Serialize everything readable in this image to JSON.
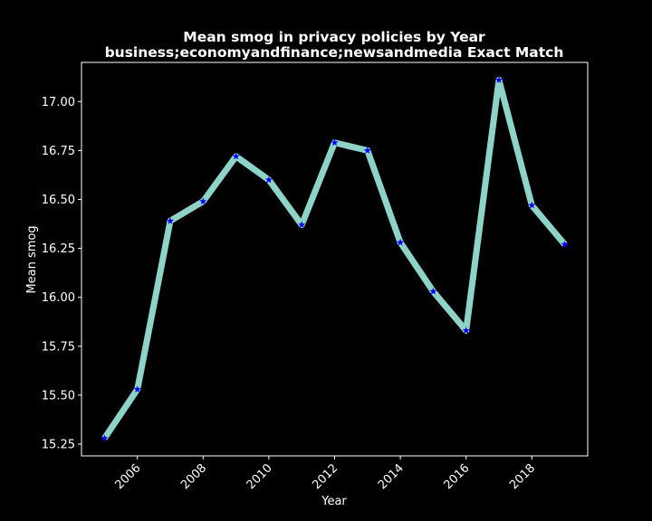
{
  "chart_data": {
    "type": "line",
    "title": "Mean smog in privacy policies by Year",
    "subtitle": "business;economyandfinance;newsandmedia Exact Match",
    "xlabel": "Year",
    "ylabel": "Mean smog",
    "x": [
      2005,
      2006,
      2007,
      2008,
      2009,
      2010,
      2011,
      2012,
      2013,
      2014,
      2015,
      2016,
      2017,
      2018,
      2019
    ],
    "series": [
      {
        "values": [
          15.28,
          15.53,
          16.39,
          16.49,
          16.72,
          16.6,
          16.37,
          16.79,
          16.75,
          16.28,
          16.03,
          15.83,
          17.11,
          16.47,
          16.27
        ]
      }
    ],
    "xticks": [
      "2006",
      "2008",
      "2010",
      "2012",
      "2014",
      "2016",
      "2018"
    ],
    "yticks": [
      "15.25",
      "15.50",
      "15.75",
      "16.00",
      "16.25",
      "16.50",
      "16.75",
      "17.00"
    ],
    "xlim": [
      2004.3,
      2019.7
    ],
    "ylim": [
      15.19,
      17.2
    ],
    "grid": false,
    "colors": {
      "line": "#8dd3c7",
      "marker": "#0000ff",
      "background": "#000000",
      "text": "#ffffff"
    },
    "marker": "star-icon"
  }
}
